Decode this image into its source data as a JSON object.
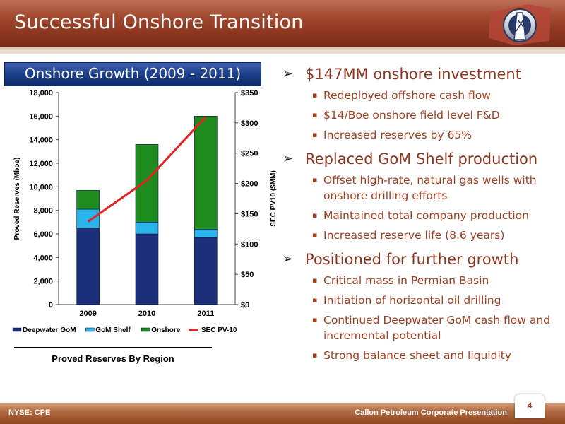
{
  "header": {
    "title": "Successful Onshore Transition",
    "logo_icon": "company-logo-icon"
  },
  "chart_panel": {
    "title": "Onshore Growth (2009 - 2011)",
    "caption": "Proved Reserves By Region"
  },
  "chart_data": {
    "type": "bar",
    "stacked": true,
    "categories": [
      "2009",
      "2010",
      "2011"
    ],
    "series": [
      {
        "name": "Deepwater GoM",
        "values": [
          6500,
          6000,
          5700
        ],
        "color": "#1c2f7a"
      },
      {
        "name": "GoM Shelf",
        "values": [
          1600,
          1000,
          700
        ],
        "color": "#29b4ea"
      },
      {
        "name": "Onshore",
        "values": [
          1600,
          6600,
          9600
        ],
        "color": "#1f8c1f"
      }
    ],
    "line_series": {
      "name": "SEC PV-10",
      "values": [
        137,
        205,
        310
      ],
      "color": "#e52222",
      "axis": "right"
    },
    "ylabel": "Proved Reserves (Mboe)",
    "y2label": "SEC PV10 ($MM)",
    "ylim": [
      0,
      18000
    ],
    "y2lim": [
      0,
      350
    ],
    "yticks": [
      "0",
      "2,000",
      "4,000",
      "6,000",
      "8,000",
      "10,000",
      "12,000",
      "14,000",
      "16,000",
      "18,000"
    ],
    "y2ticks": [
      "$0",
      "$50",
      "$100",
      "$150",
      "$200",
      "$250",
      "$300",
      "$350"
    ],
    "legend_position": "bottom",
    "grid": false
  },
  "bullets": [
    {
      "text": "$147MM onshore investment",
      "subs": [
        "Redeployed offshore cash flow",
        "$14/Boe onshore field level F&D",
        "Increased reserves by 65%"
      ]
    },
    {
      "text": "Replaced GoM Shelf production",
      "subs": [
        "Offset high-rate, natural gas wells with onshore drilling efforts",
        "Maintained total company production",
        "Increased reserve life (8.6 years)"
      ]
    },
    {
      "text": "Positioned for further growth",
      "subs": [
        "Critical mass in Permian Basin",
        "Initiation of horizontal oil drilling",
        "Continued Deepwater GoM cash flow and incremental potential",
        "Strong balance sheet and liquidity"
      ]
    }
  ],
  "footer": {
    "ticker": "NYSE: CPE",
    "presentation": "Callon Petroleum Corporate Presentation",
    "page": "4"
  }
}
